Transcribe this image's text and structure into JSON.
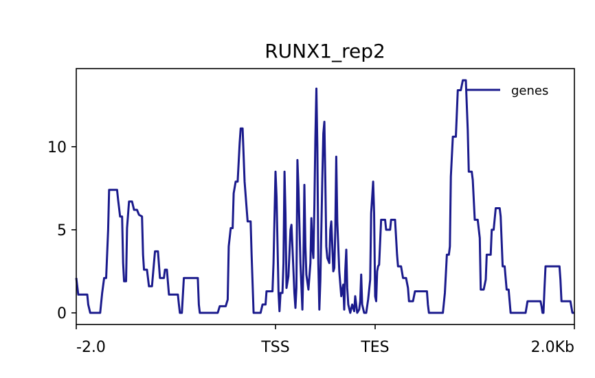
{
  "chart_data": {
    "type": "line",
    "title": "RUNX1_rep2",
    "xlabel": "",
    "ylabel": "",
    "ylim": [
      -0.7,
      14.7
    ],
    "x_ticks": [
      {
        "value": 0,
        "label": "-2.0"
      },
      {
        "value": 20,
        "label": "TSS"
      },
      {
        "value": 30,
        "label": "TES"
      },
      {
        "value": 50,
        "label": "2.0Kb"
      }
    ],
    "y_ticks": [
      {
        "value": 0,
        "label": "0"
      },
      {
        "value": 5,
        "label": "5"
      },
      {
        "value": 10,
        "label": "10"
      }
    ],
    "legend": {
      "position": "top-right"
    },
    "grid": false,
    "series": [
      {
        "name": "genes",
        "color": "#1a1a8c",
        "points": [
          [
            0,
            2.1
          ],
          [
            0.2,
            1.1
          ],
          [
            1,
            1.1
          ],
          [
            1.1,
            1.1
          ],
          [
            1.2,
            0.5
          ],
          [
            1.4,
            0
          ],
          [
            2,
            0
          ],
          [
            2.4,
            0
          ],
          [
            2.6,
            1.2
          ],
          [
            2.8,
            2.1
          ],
          [
            3.0,
            2.1
          ],
          [
            3.2,
            5
          ],
          [
            3.3,
            7.4
          ],
          [
            4,
            7.4
          ],
          [
            4.1,
            7.4
          ],
          [
            4.2,
            6.8
          ],
          [
            4.4,
            5.8
          ],
          [
            4.6,
            5.8
          ],
          [
            4.7,
            3
          ],
          [
            4.8,
            1.9
          ],
          [
            5.0,
            1.9
          ],
          [
            5.1,
            5.1
          ],
          [
            5.3,
            6.7
          ],
          [
            5.6,
            6.7
          ],
          [
            5.8,
            6.2
          ],
          [
            6.1,
            6.2
          ],
          [
            6.3,
            5.9
          ],
          [
            6.6,
            5.8
          ],
          [
            6.7,
            3.5
          ],
          [
            6.8,
            2.6
          ],
          [
            7.1,
            2.6
          ],
          [
            7.3,
            1.6
          ],
          [
            7.6,
            1.6
          ],
          [
            7.8,
            3
          ],
          [
            7.9,
            3.7
          ],
          [
            8.2,
            3.7
          ],
          [
            8.4,
            2.1
          ],
          [
            8.8,
            2.1
          ],
          [
            8.9,
            2.6
          ],
          [
            9.1,
            2.6
          ],
          [
            9.3,
            1.1
          ],
          [
            10.2,
            1.1
          ],
          [
            10.3,
            0.5
          ],
          [
            10.4,
            0
          ],
          [
            10.6,
            0
          ],
          [
            10.8,
            2.1
          ],
          [
            12.2,
            2.1
          ],
          [
            12.3,
            0.5
          ],
          [
            12.4,
            0
          ],
          [
            14.2,
            0
          ],
          [
            14.4,
            0.4
          ],
          [
            15.0,
            0.4
          ],
          [
            15.2,
            0.8
          ],
          [
            15.3,
            4
          ],
          [
            15.5,
            5.1
          ],
          [
            15.7,
            5.1
          ],
          [
            15.8,
            7.2
          ],
          [
            16.0,
            7.9
          ],
          [
            16.2,
            7.9
          ],
          [
            16.4,
            10.2
          ],
          [
            16.5,
            11.1
          ],
          [
            16.7,
            11.1
          ],
          [
            16.9,
            7.9
          ],
          [
            17.2,
            5.5
          ],
          [
            17.5,
            5.5
          ],
          [
            17.6,
            3.5
          ],
          [
            17.8,
            0
          ],
          [
            18.5,
            0
          ],
          [
            18.7,
            0.5
          ],
          [
            19.0,
            0.5
          ],
          [
            19.1,
            1.3
          ],
          [
            19.7,
            1.3
          ],
          [
            19.8,
            3
          ],
          [
            20.0,
            8.5
          ],
          [
            20.1,
            7
          ],
          [
            20.3,
            1.2
          ],
          [
            20.4,
            0.1
          ],
          [
            20.5,
            1.2
          ],
          [
            20.7,
            1.2
          ],
          [
            20.8,
            3
          ],
          [
            20.9,
            8.5
          ],
          [
            21.0,
            6
          ],
          [
            21.1,
            1.5
          ],
          [
            21.3,
            2.2
          ],
          [
            21.5,
            5
          ],
          [
            21.6,
            5.3
          ],
          [
            21.7,
            4
          ],
          [
            21.9,
            1.2
          ],
          [
            22.0,
            0.3
          ],
          [
            22.1,
            1.5
          ],
          [
            22.2,
            9.2
          ],
          [
            22.3,
            7.5
          ],
          [
            22.5,
            3
          ],
          [
            22.7,
            0.2
          ],
          [
            22.8,
            3
          ],
          [
            22.9,
            7.7
          ],
          [
            23.0,
            4
          ],
          [
            23.1,
            2.3
          ],
          [
            23.3,
            1.4
          ],
          [
            23.5,
            3
          ],
          [
            23.6,
            5.7
          ],
          [
            23.7,
            4
          ],
          [
            23.8,
            3.3
          ],
          [
            23.9,
            6.5
          ],
          [
            24.0,
            10.5
          ],
          [
            24.1,
            13.5
          ],
          [
            24.2,
            10
          ],
          [
            24.3,
            3
          ],
          [
            24.4,
            0.2
          ],
          [
            24.5,
            2
          ],
          [
            24.6,
            5
          ],
          [
            24.7,
            8
          ],
          [
            24.8,
            10.8
          ],
          [
            24.9,
            11.5
          ],
          [
            25.0,
            8
          ],
          [
            25.1,
            4
          ],
          [
            25.2,
            3.3
          ],
          [
            25.4,
            3
          ],
          [
            25.5,
            5
          ],
          [
            25.6,
            5.5
          ],
          [
            25.7,
            4
          ],
          [
            25.8,
            2.5
          ],
          [
            25.9,
            2.7
          ],
          [
            26.0,
            5
          ],
          [
            26.1,
            9.4
          ],
          [
            26.2,
            5.5
          ],
          [
            26.4,
            2.5
          ],
          [
            26.6,
            1
          ],
          [
            26.8,
            1.7
          ],
          [
            26.9,
            0.2
          ],
          [
            27.0,
            2.5
          ],
          [
            27.1,
            3.8
          ],
          [
            27.2,
            1.5
          ],
          [
            27.3,
            0.5
          ],
          [
            27.5,
            0
          ],
          [
            27.7,
            0.5
          ],
          [
            27.9,
            0.1
          ],
          [
            28.0,
            1
          ],
          [
            28.2,
            0
          ],
          [
            28.4,
            0.2
          ],
          [
            28.5,
            0.7
          ],
          [
            28.6,
            2.3
          ],
          [
            28.7,
            0.5
          ],
          [
            28.9,
            0
          ],
          [
            29.1,
            0
          ],
          [
            29.3,
            0.8
          ],
          [
            29.5,
            2
          ],
          [
            29.6,
            6
          ],
          [
            29.8,
            7.9
          ],
          [
            29.9,
            6
          ],
          [
            30.0,
            1
          ],
          [
            30.1,
            0.7
          ],
          [
            30.2,
            2.5
          ],
          [
            30.3,
            2.8
          ],
          [
            30.4,
            2.9
          ],
          [
            30.6,
            5.6
          ],
          [
            31.0,
            5.6
          ],
          [
            31.1,
            5
          ],
          [
            31.5,
            5
          ],
          [
            31.6,
            5.6
          ],
          [
            32.0,
            5.6
          ],
          [
            32.2,
            3.5
          ],
          [
            32.3,
            2.8
          ],
          [
            32.6,
            2.8
          ],
          [
            32.8,
            2.1
          ],
          [
            33.1,
            2.1
          ],
          [
            33.3,
            1.5
          ],
          [
            33.4,
            0.7
          ],
          [
            33.8,
            0.7
          ],
          [
            34.0,
            1.3
          ],
          [
            35.2,
            1.3
          ],
          [
            35.3,
            0.5
          ],
          [
            35.4,
            0
          ],
          [
            36.8,
            0
          ],
          [
            37.0,
            1.2
          ],
          [
            37.2,
            3.5
          ],
          [
            37.4,
            3.5
          ],
          [
            37.5,
            4
          ],
          [
            37.6,
            8.2
          ],
          [
            37.8,
            10.6
          ],
          [
            38.1,
            10.6
          ],
          [
            38.3,
            13.4
          ],
          [
            38.6,
            13.4
          ],
          [
            38.8,
            14
          ],
          [
            39.1,
            14
          ],
          [
            39.3,
            11
          ],
          [
            39.4,
            8.5
          ],
          [
            39.7,
            8.5
          ],
          [
            39.8,
            8
          ],
          [
            40.0,
            5.6
          ],
          [
            40.3,
            5.6
          ],
          [
            40.5,
            4.5
          ],
          [
            40.6,
            1.4
          ],
          [
            40.9,
            1.4
          ],
          [
            41.1,
            2
          ],
          [
            41.2,
            3.5
          ],
          [
            41.6,
            3.5
          ],
          [
            41.7,
            5
          ],
          [
            41.9,
            5
          ],
          [
            42.1,
            6.3
          ],
          [
            42.5,
            6.3
          ],
          [
            42.6,
            5.8
          ],
          [
            42.8,
            2.8
          ],
          [
            43.0,
            2.8
          ],
          [
            43.2,
            1.4
          ],
          [
            43.4,
            1.4
          ],
          [
            43.6,
            0
          ],
          [
            45.1,
            0
          ],
          [
            45.3,
            0.7
          ],
          [
            46.6,
            0.7
          ],
          [
            46.7,
            0.4
          ],
          [
            46.8,
            0
          ],
          [
            46.9,
            0
          ],
          [
            47.0,
            1.5
          ],
          [
            47.1,
            2.8
          ],
          [
            48.5,
            2.8
          ],
          [
            48.6,
            2
          ],
          [
            48.7,
            0.7
          ],
          [
            49.6,
            0.7
          ],
          [
            49.8,
            0
          ],
          [
            50.0,
            0
          ],
          [
            50.1,
            0.7
          ]
        ]
      }
    ]
  }
}
